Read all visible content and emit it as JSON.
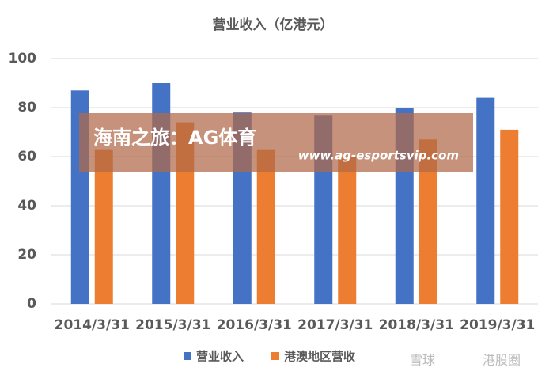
{
  "chart_data": {
    "type": "bar",
    "title": "营业收入（亿港元）",
    "categories": [
      "2014/3/31",
      "2015/3/31",
      "2016/3/31",
      "2017/3/31",
      "2018/3/31",
      "2019/3/31"
    ],
    "series": [
      {
        "name": "营业收入",
        "color": "#4472c4",
        "values": [
          87,
          90,
          78,
          77,
          80,
          84
        ]
      },
      {
        "name": "港澳地区营收",
        "color": "#ed7d31",
        "values": [
          63,
          74,
          63,
          60,
          67,
          71
        ]
      }
    ],
    "ylim": [
      0,
      100
    ],
    "yticks": [
      0,
      20,
      40,
      60,
      80,
      100
    ],
    "grid": true,
    "legend": "bottom"
  },
  "overlay": {
    "headline": "海南之旅：AG体育",
    "url": "www.ag-esportsvip.com"
  },
  "watermark": [
    "雪球",
    "港股圈"
  ]
}
